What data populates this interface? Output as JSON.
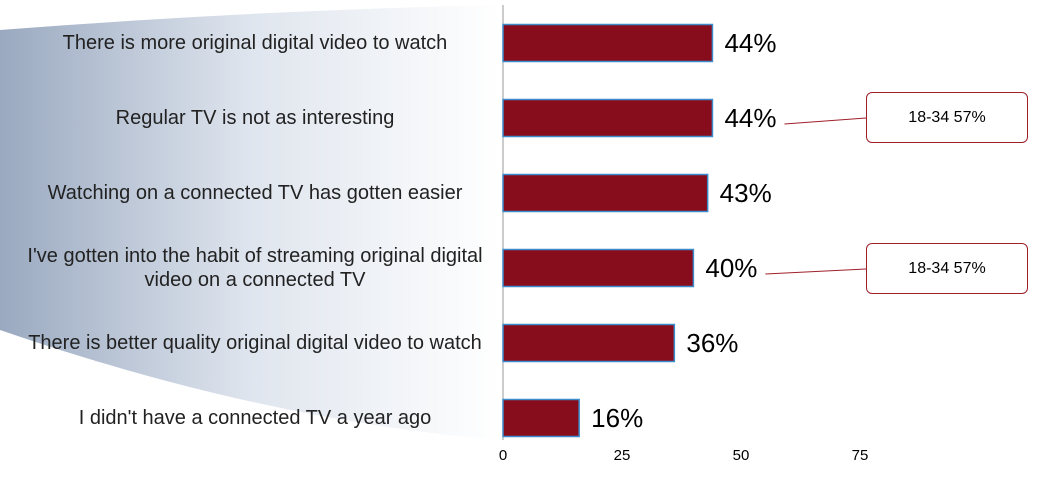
{
  "chart_data": {
    "type": "bar",
    "orientation": "horizontal",
    "categories": [
      "There is more original digital video to watch",
      "Regular TV is not as interesting",
      "Watching on a connected TV has gotten easier",
      "I've gotten into the habit of streaming original digital video on a connected TV",
      "There is better quality original digital video to watch",
      "I didn't have a connected TV a year ago"
    ],
    "values": [
      44,
      44,
      43,
      40,
      36,
      16
    ],
    "value_labels": [
      "44%",
      "44%",
      "43%",
      "40%",
      "36%",
      "16%"
    ],
    "color": "#870c1c",
    "xlim": [
      0,
      75
    ],
    "xticks": [
      0,
      25,
      50,
      75
    ],
    "annotations": [
      "18-34  57%",
      "18-34  57%"
    ]
  }
}
